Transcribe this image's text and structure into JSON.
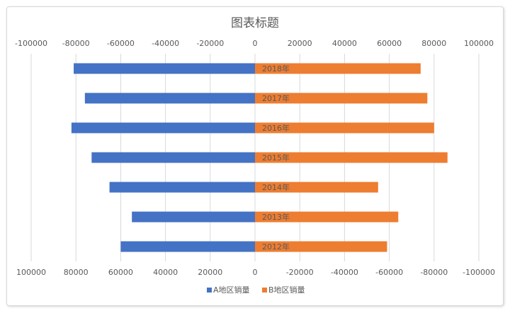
{
  "chart_data": {
    "type": "bar",
    "orientation": "horizontal-butterfly",
    "title": "图表标题",
    "categories": [
      "2012年",
      "2013年",
      "2014年",
      "2015年",
      "2016年",
      "2017年",
      "2018年"
    ],
    "series": [
      {
        "name": "A地区销量",
        "color": "#4472C4",
        "values": [
          60000,
          55000,
          65000,
          73000,
          82000,
          76000,
          81000
        ]
      },
      {
        "name": "B地区销量",
        "color": "#ED7D31",
        "values": [
          59000,
          64000,
          55000,
          86000,
          80000,
          77000,
          74000
        ]
      }
    ],
    "xlim": [
      -100000,
      100000
    ],
    "top_axis_ticks": [
      "-100000",
      "-80000",
      "-60000",
      "-40000",
      "-20000",
      "0",
      "20000",
      "40000",
      "60000",
      "80000",
      "100000"
    ],
    "bottom_axis_ticks": [
      "100000",
      "80000",
      "60000",
      "40000",
      "20000",
      "0",
      "-20000",
      "-40000",
      "-60000",
      "-80000",
      "-100000"
    ],
    "gridlines": true,
    "legend_position": "bottom"
  }
}
